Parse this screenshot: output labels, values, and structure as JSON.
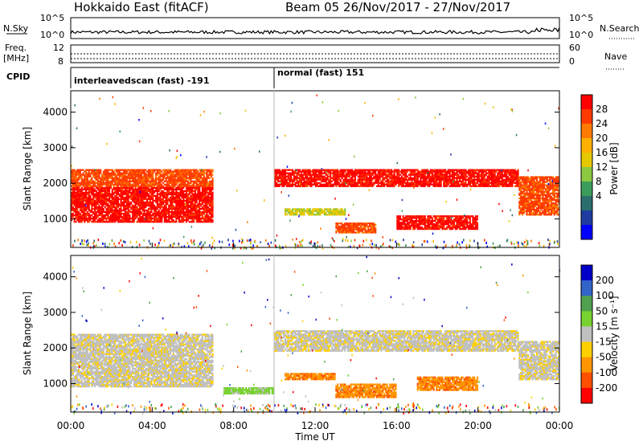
{
  "header": {
    "station": "Hokkaido East (fitACF)",
    "beam_info": "Beam 05  26/Nov/2017 - 27/Nov/2017"
  },
  "top_panels": {
    "nsky_label": "N.Sky",
    "nsky_ticks": [
      "10^5",
      "10^0"
    ],
    "nsky_right_ticks": [
      "10^5",
      "10^0"
    ],
    "nsearch_label": "N.Search",
    "freq_label_1": "Freq.",
    "freq_label_2": "[MHz]",
    "freq_ticks": [
      "12",
      "8"
    ],
    "nave_label": "Nave",
    "nave_ticks": [
      "60",
      "0"
    ],
    "cpid_label": "CPID",
    "cpid_modes": [
      {
        "label": "interleavedscan (fast) -191",
        "start_hour": 0,
        "end_hour": 10
      },
      {
        "label": "normal (fast) 151",
        "start_hour": 10,
        "end_hour": 24
      }
    ]
  },
  "colorbars": {
    "power": {
      "label": "Power [dB]",
      "ticks": [
        "28",
        "24",
        "20",
        "16",
        "12",
        "8",
        "4"
      ],
      "colors": [
        "#ff0000",
        "#ff3a00",
        "#ff7a00",
        "#ffb000",
        "#e6c800",
        "#8cc840",
        "#3c9c5c",
        "#2a6e6e",
        "#1e3ca0",
        "#0000ff"
      ]
    },
    "velocity": {
      "label": "Velocity [m s⁻¹]",
      "ticks": [
        "200",
        "100",
        "50",
        "15",
        "-15",
        "-50",
        "-100",
        "-200"
      ],
      "colors": [
        "#0000c8",
        "#3264c8",
        "#50a050",
        "#78d230",
        "#c0c0c0",
        "#ffd000",
        "#ff9600",
        "#ff5000",
        "#ff0000"
      ]
    }
  },
  "chart_data": [
    {
      "type": "heatmap",
      "name": "power",
      "ylabel": "Slant Range [km]",
      "ylim": [
        200,
        4600
      ],
      "yticks": [
        "4000",
        "3000",
        "2000",
        "1000"
      ],
      "xlim_hours": [
        0,
        24
      ],
      "echo_regions": [
        {
          "t0": 0.0,
          "t1": 7.0,
          "r0": 900,
          "r1": 1900,
          "level": 0
        },
        {
          "t0": 0.0,
          "t1": 7.0,
          "r0": 1900,
          "r1": 2400,
          "level": 1
        },
        {
          "t0": 10.0,
          "t1": 22.0,
          "r0": 1900,
          "r1": 2400,
          "level": 0
        },
        {
          "t0": 22.0,
          "t1": 24.0,
          "r0": 1100,
          "r1": 2200,
          "level": 1
        },
        {
          "t0": 10.5,
          "t1": 13.5,
          "r0": 1100,
          "r1": 1300,
          "level": 4
        },
        {
          "t0": 13.0,
          "t1": 15.0,
          "r0": 600,
          "r1": 900,
          "level": 1
        },
        {
          "t0": 16.0,
          "t1": 20.0,
          "r0": 700,
          "r1": 1100,
          "level": 0
        }
      ]
    },
    {
      "type": "heatmap",
      "name": "velocity",
      "ylabel": "Slant Range [km]",
      "ylim": [
        200,
        4600
      ],
      "yticks": [
        "4000",
        "3000",
        "2000",
        "1000"
      ],
      "xlim_hours": [
        0,
        24
      ],
      "xlabel": "Time UT",
      "xticks": [
        "00:00",
        "04:00",
        "08:00",
        "12:00",
        "16:00",
        "20:00",
        "00:00"
      ],
      "echo_regions": [
        {
          "t0": 0.0,
          "t1": 7.0,
          "r0": 900,
          "r1": 2400,
          "level": 4
        },
        {
          "t0": 10.0,
          "t1": 22.0,
          "r0": 1900,
          "r1": 2500,
          "level": 4
        },
        {
          "t0": 22.0,
          "t1": 24.0,
          "r0": 1100,
          "r1": 2200,
          "level": 4
        },
        {
          "t0": 10.5,
          "t1": 13.0,
          "r0": 1100,
          "r1": 1300,
          "level": 6
        },
        {
          "t0": 13.0,
          "t1": 16.0,
          "r0": 600,
          "r1": 1000,
          "level": 6
        },
        {
          "t0": 17.0,
          "t1": 20.0,
          "r0": 800,
          "r1": 1200,
          "level": 6
        },
        {
          "t0": 7.5,
          "t1": 10.0,
          "r0": 700,
          "r1": 900,
          "level": 3
        }
      ]
    }
  ]
}
